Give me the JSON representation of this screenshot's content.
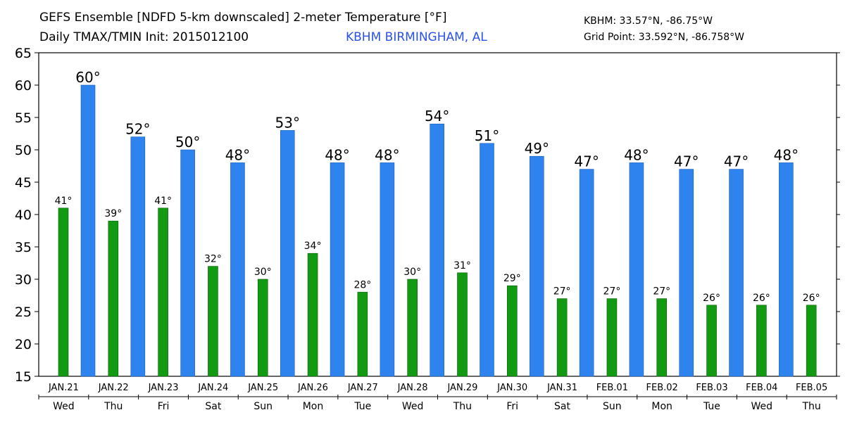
{
  "header": {
    "title_line1": "GEFS Ensemble [NDFD 5-km downscaled] 2-meter Temperature [°F]",
    "title_line2": "Daily TMAX/TMIN Init: 2015012100",
    "station": "KBHM BIRMINGHAM, AL",
    "coords_line1": "KBHM: 33.57°N, -86.75°W",
    "coords_line2": "Grid Point: 33.592°N, -86.758°W"
  },
  "colors": {
    "tmax": "#2f83ef",
    "tmin": "#139a13",
    "text": "#000000"
  },
  "chart_data": {
    "type": "bar",
    "title": "GEFS Ensemble [NDFD 5-km downscaled] 2-meter Temperature [°F]",
    "subtitle": "Daily TMAX/TMIN Init: 2015012100",
    "ylim": [
      15,
      65
    ],
    "yticks": [
      15,
      20,
      25,
      30,
      35,
      40,
      45,
      50,
      55,
      60,
      65
    ],
    "grid": false,
    "days": [
      {
        "date": "JAN.21",
        "dow": "Wed",
        "tmin": 41,
        "tmax": 60,
        "tmin_label": "41°",
        "tmax_label": "60°"
      },
      {
        "date": "JAN.22",
        "dow": "Thu",
        "tmin": 39,
        "tmax": 52,
        "tmin_label": "39°",
        "tmax_label": "52°"
      },
      {
        "date": "JAN.23",
        "dow": "Fri",
        "tmin": 41,
        "tmax": 50,
        "tmin_label": "41°",
        "tmax_label": "50°"
      },
      {
        "date": "JAN.24",
        "dow": "Sat",
        "tmin": 32,
        "tmax": 48,
        "tmin_label": "32°",
        "tmax_label": "48°"
      },
      {
        "date": "JAN.25",
        "dow": "Sun",
        "tmin": 30,
        "tmax": 53,
        "tmin_label": "30°",
        "tmax_label": "53°"
      },
      {
        "date": "JAN.26",
        "dow": "Mon",
        "tmin": 34,
        "tmax": 48,
        "tmin_label": "34°",
        "tmax_label": "48°"
      },
      {
        "date": "JAN.27",
        "dow": "Tue",
        "tmin": 28,
        "tmax": 48,
        "tmin_label": "28°",
        "tmax_label": "48°"
      },
      {
        "date": "JAN.28",
        "dow": "Wed",
        "tmin": 30,
        "tmax": 54,
        "tmin_label": "30°",
        "tmax_label": "54°"
      },
      {
        "date": "JAN.29",
        "dow": "Thu",
        "tmin": 31,
        "tmax": 51,
        "tmin_label": "31°",
        "tmax_label": "51°"
      },
      {
        "date": "JAN.30",
        "dow": "Fri",
        "tmin": 29,
        "tmax": 49,
        "tmin_label": "29°",
        "tmax_label": "49°"
      },
      {
        "date": "JAN.31",
        "dow": "Sat",
        "tmin": 27,
        "tmax": 47,
        "tmin_label": "27°",
        "tmax_label": "47°"
      },
      {
        "date": "FEB.01",
        "dow": "Sun",
        "tmin": 27,
        "tmax": 48,
        "tmin_label": "27°",
        "tmax_label": "48°"
      },
      {
        "date": "FEB.02",
        "dow": "Mon",
        "tmin": 27,
        "tmax": 47,
        "tmin_label": "27°",
        "tmax_label": "47°"
      },
      {
        "date": "FEB.03",
        "dow": "Tue",
        "tmin": 26,
        "tmax": 47,
        "tmin_label": "26°",
        "tmax_label": "47°"
      },
      {
        "date": "FEB.04",
        "dow": "Wed",
        "tmin": 26,
        "tmax": 48,
        "tmin_label": "26°",
        "tmax_label": "48°"
      },
      {
        "date": "FEB.05",
        "dow": "Thu",
        "tmin": 26,
        "tmax": null,
        "tmin_label": "26°",
        "tmax_label": ""
      }
    ]
  }
}
